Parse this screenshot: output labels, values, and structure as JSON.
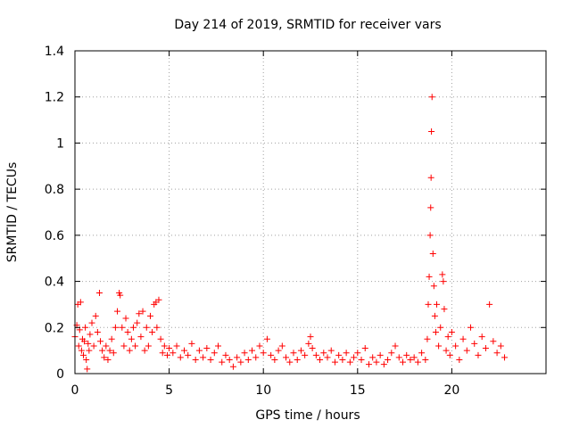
{
  "chart_data": {
    "type": "scatter",
    "title": "Day 214 of 2019, SRMTID for receiver vars",
    "xlabel": "GPS time / hours",
    "ylabel": "SRMTID / TECUs",
    "xlim": [
      0,
      25
    ],
    "ylim": [
      0,
      1.4
    ],
    "xticks": [
      0,
      5,
      10,
      15,
      20
    ],
    "xtick_labels": [
      "0",
      "5",
      "10",
      "15",
      "20"
    ],
    "yticks": [
      0,
      0.2,
      0.4,
      0.6,
      0.8,
      1,
      1.2,
      1.4
    ],
    "ytick_labels": [
      "0",
      "0.2",
      "0.4",
      "0.6",
      "0.8",
      "1",
      "1.2",
      "1.4"
    ],
    "grid": true,
    "marker": "plus",
    "color": "#ff0000",
    "series": [
      {
        "name": "receiver vars",
        "points": [
          [
            0.0,
            0.16
          ],
          [
            0.1,
            0.21
          ],
          [
            0.15,
            0.3
          ],
          [
            0.2,
            0.12
          ],
          [
            0.25,
            0.19
          ],
          [
            0.3,
            0.31
          ],
          [
            0.35,
            0.1
          ],
          [
            0.4,
            0.15
          ],
          [
            0.45,
            0.08
          ],
          [
            0.5,
            0.14
          ],
          [
            0.55,
            0.2
          ],
          [
            0.6,
            0.06
          ],
          [
            0.65,
            0.02
          ],
          [
            0.7,
            0.13
          ],
          [
            0.75,
            0.1
          ],
          [
            0.8,
            0.17
          ],
          [
            0.9,
            0.22
          ],
          [
            1.0,
            0.12
          ],
          [
            1.1,
            0.25
          ],
          [
            1.2,
            0.18
          ],
          [
            1.3,
            0.35
          ],
          [
            1.35,
            0.14
          ],
          [
            1.45,
            0.1
          ],
          [
            1.55,
            0.07
          ],
          [
            1.65,
            0.12
          ],
          [
            1.75,
            0.06
          ],
          [
            1.85,
            0.1
          ],
          [
            1.95,
            0.15
          ],
          [
            2.05,
            0.09
          ],
          [
            2.15,
            0.2
          ],
          [
            2.25,
            0.27
          ],
          [
            2.35,
            0.35
          ],
          [
            2.4,
            0.34
          ],
          [
            2.5,
            0.2
          ],
          [
            2.6,
            0.12
          ],
          [
            2.7,
            0.24
          ],
          [
            2.8,
            0.18
          ],
          [
            2.9,
            0.1
          ],
          [
            3.0,
            0.15
          ],
          [
            3.1,
            0.2
          ],
          [
            3.2,
            0.12
          ],
          [
            3.3,
            0.22
          ],
          [
            3.4,
            0.26
          ],
          [
            3.5,
            0.16
          ],
          [
            3.6,
            0.27
          ],
          [
            3.7,
            0.1
          ],
          [
            3.8,
            0.2
          ],
          [
            3.9,
            0.12
          ],
          [
            4.0,
            0.25
          ],
          [
            4.1,
            0.18
          ],
          [
            4.2,
            0.3
          ],
          [
            4.3,
            0.31
          ],
          [
            4.35,
            0.2
          ],
          [
            4.45,
            0.32
          ],
          [
            4.55,
            0.15
          ],
          [
            4.65,
            0.09
          ],
          [
            4.75,
            0.12
          ],
          [
            4.9,
            0.08
          ],
          [
            5.0,
            0.11
          ],
          [
            5.2,
            0.09
          ],
          [
            5.4,
            0.12
          ],
          [
            5.6,
            0.07
          ],
          [
            5.8,
            0.1
          ],
          [
            6.0,
            0.08
          ],
          [
            6.2,
            0.13
          ],
          [
            6.4,
            0.06
          ],
          [
            6.6,
            0.1
          ],
          [
            6.8,
            0.07
          ],
          [
            7.0,
            0.11
          ],
          [
            7.2,
            0.06
          ],
          [
            7.4,
            0.09
          ],
          [
            7.6,
            0.12
          ],
          [
            7.8,
            0.05
          ],
          [
            8.0,
            0.08
          ],
          [
            8.2,
            0.06
          ],
          [
            8.4,
            0.03
          ],
          [
            8.6,
            0.07
          ],
          [
            8.8,
            0.05
          ],
          [
            9.0,
            0.09
          ],
          [
            9.2,
            0.06
          ],
          [
            9.4,
            0.1
          ],
          [
            9.6,
            0.07
          ],
          [
            9.8,
            0.12
          ],
          [
            10.0,
            0.09
          ],
          [
            10.2,
            0.15
          ],
          [
            10.4,
            0.08
          ],
          [
            10.6,
            0.06
          ],
          [
            10.8,
            0.1
          ],
          [
            11.0,
            0.12
          ],
          [
            11.2,
            0.07
          ],
          [
            11.4,
            0.05
          ],
          [
            11.6,
            0.09
          ],
          [
            11.8,
            0.06
          ],
          [
            12.0,
            0.1
          ],
          [
            12.2,
            0.08
          ],
          [
            12.4,
            0.13
          ],
          [
            12.5,
            0.16
          ],
          [
            12.6,
            0.11
          ],
          [
            12.8,
            0.08
          ],
          [
            13.0,
            0.06
          ],
          [
            13.2,
            0.09
          ],
          [
            13.4,
            0.07
          ],
          [
            13.6,
            0.1
          ],
          [
            13.8,
            0.05
          ],
          [
            14.0,
            0.08
          ],
          [
            14.2,
            0.06
          ],
          [
            14.4,
            0.09
          ],
          [
            14.6,
            0.05
          ],
          [
            14.8,
            0.07
          ],
          [
            15.0,
            0.09
          ],
          [
            15.2,
            0.06
          ],
          [
            15.4,
            0.11
          ],
          [
            15.6,
            0.04
          ],
          [
            15.8,
            0.07
          ],
          [
            16.0,
            0.05
          ],
          [
            16.2,
            0.08
          ],
          [
            16.4,
            0.04
          ],
          [
            16.6,
            0.06
          ],
          [
            16.8,
            0.09
          ],
          [
            17.0,
            0.12
          ],
          [
            17.2,
            0.07
          ],
          [
            17.4,
            0.05
          ],
          [
            17.6,
            0.08
          ],
          [
            17.8,
            0.06
          ],
          [
            18.0,
            0.07
          ],
          [
            18.2,
            0.05
          ],
          [
            18.4,
            0.09
          ],
          [
            18.6,
            0.06
          ],
          [
            18.7,
            0.15
          ],
          [
            18.75,
            0.3
          ],
          [
            18.8,
            0.42
          ],
          [
            18.85,
            0.6
          ],
          [
            18.88,
            0.72
          ],
          [
            18.9,
            0.85
          ],
          [
            18.92,
            1.05
          ],
          [
            18.95,
            1.2
          ],
          [
            19.0,
            0.52
          ],
          [
            19.05,
            0.38
          ],
          [
            19.1,
            0.25
          ],
          [
            19.15,
            0.18
          ],
          [
            19.2,
            0.3
          ],
          [
            19.3,
            0.12
          ],
          [
            19.4,
            0.2
          ],
          [
            19.5,
            0.43
          ],
          [
            19.55,
            0.4
          ],
          [
            19.6,
            0.28
          ],
          [
            19.7,
            0.1
          ],
          [
            19.8,
            0.16
          ],
          [
            19.9,
            0.08
          ],
          [
            20.0,
            0.18
          ],
          [
            20.2,
            0.12
          ],
          [
            20.4,
            0.06
          ],
          [
            20.6,
            0.15
          ],
          [
            20.8,
            0.1
          ],
          [
            21.0,
            0.2
          ],
          [
            21.2,
            0.13
          ],
          [
            21.4,
            0.08
          ],
          [
            21.6,
            0.16
          ],
          [
            21.8,
            0.11
          ],
          [
            22.0,
            0.3
          ],
          [
            22.2,
            0.14
          ],
          [
            22.4,
            0.09
          ],
          [
            22.6,
            0.12
          ],
          [
            22.8,
            0.07
          ]
        ]
      }
    ]
  }
}
